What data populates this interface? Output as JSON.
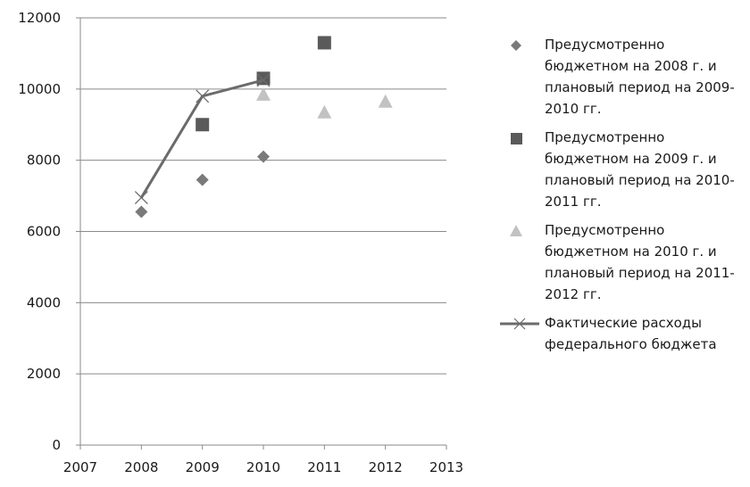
{
  "chart_data": {
    "type": "scatter",
    "title": "",
    "xlabel": "",
    "ylabel": "",
    "xlim": [
      2007,
      2013
    ],
    "ylim": [
      0,
      12000
    ],
    "x_ticks": [
      2007,
      2008,
      2009,
      2010,
      2011,
      2012,
      2013
    ],
    "y_ticks": [
      0,
      2000,
      4000,
      6000,
      8000,
      10000,
      12000
    ],
    "grid": "horizontal",
    "legend_position": "right",
    "series": [
      {
        "name": "Предусмотренно бюджетном на 2008 г. и плановый период на 2009-2010 гг.",
        "marker": "diamond",
        "color": "#7a7a7a",
        "points": [
          [
            2008,
            6550
          ],
          [
            2009,
            7450
          ],
          [
            2010,
            8100
          ]
        ]
      },
      {
        "name": "Предусмотренно бюджетном на 2009 г. и плановый период на 2010-2011 гг.",
        "marker": "square",
        "color": "#5a5a5a",
        "points": [
          [
            2009,
            9000
          ],
          [
            2010,
            10300
          ],
          [
            2011,
            11300
          ]
        ]
      },
      {
        "name": "Предусмотренно бюджетном на 2010 г. и плановый период на 2011-2012 гг.",
        "marker": "triangle",
        "color": "#c2c2c2",
        "points": [
          [
            2010,
            9850
          ],
          [
            2011,
            9350
          ],
          [
            2012,
            9650
          ]
        ]
      },
      {
        "name": "Фактические расходы федерального бюджета",
        "marker": "x",
        "line": true,
        "color": "#6b6b6b",
        "points": [
          [
            2008,
            6950
          ],
          [
            2009,
            9800
          ],
          [
            2010,
            10250
          ]
        ]
      }
    ]
  }
}
